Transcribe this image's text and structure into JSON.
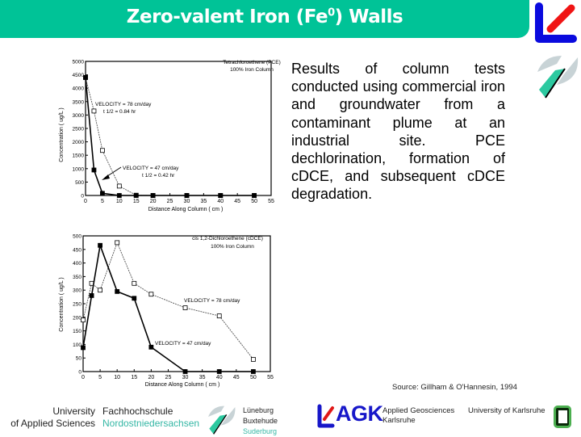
{
  "header": {
    "title_prefix": "Zero-valent Iron (Fe",
    "title_sup": "0",
    "title_suffix": ") Walls",
    "bar_color": "#00c397"
  },
  "description": "Results of column tests conducted using commercial iron and groundwater from a contaminant plume at an industrial site. PCE dechlorination, formation of cDCE, and subsequent cDCE degradation.",
  "source": "Source: Gillham & O'Hannesin, 1994",
  "footer": {
    "university_line1": "University",
    "university_line2": "of Applied Sciences",
    "fh_line1": "Fachhochschule",
    "fh_line2": "Nordostniedersachsen",
    "city1": "Lüneburg",
    "city2": "Buxtehude",
    "city3": "Suderburg",
    "agk_text": "AGK",
    "agk_label_line1": "Applied Geosciences",
    "agk_label_line2": "Karlsruhe",
    "karlsruhe_label": "University of Karlsruhe"
  },
  "icons": {
    "top_right_logo": "lk-logo-icon",
    "side_logo": "fh-nordostniedersachsen-logo-icon",
    "karlsruhe_logo": "uni-karlsruhe-logo-icon"
  },
  "chart_data": [
    {
      "type": "line",
      "title": "Tetrachloroethene (PCE)",
      "subtitle": "100% Iron Column",
      "xlabel": "Distance Along Column ( cm )",
      "ylabel": "Concentration ( ug/L )",
      "xlim": [
        0,
        55
      ],
      "ylim": [
        0,
        5000
      ],
      "xticks": [
        0,
        5,
        10,
        15,
        20,
        25,
        30,
        35,
        40,
        45,
        50,
        55
      ],
      "yticks": [
        0,
        500,
        1000,
        1500,
        2000,
        2500,
        3000,
        3500,
        4000,
        4500,
        5000
      ],
      "grid": false,
      "series": [
        {
          "name": "VELOCITY = 78 cm/day",
          "annotation": "t 1/2 = 0.84 hr",
          "marker": "open-square",
          "x": [
            0,
            2.5,
            5,
            10,
            15,
            20,
            30,
            40,
            50
          ],
          "values": [
            4400,
            3150,
            1680,
            350,
            10,
            0,
            0,
            0,
            0
          ]
        },
        {
          "name": "VELOCITY = 47 cm/day",
          "annotation": "t 1/2 = 0.42 hr",
          "marker": "filled-square",
          "x": [
            0,
            2.5,
            5,
            10,
            15,
            20,
            30,
            40,
            50
          ],
          "values": [
            4400,
            950,
            80,
            0,
            0,
            0,
            0,
            0,
            0
          ]
        }
      ],
      "labels": {
        "v78": "VELOCITY  =  78 cm/day",
        "t78": "t 1/2  =  0.84 hr",
        "v47": "VELOCITY  =  47 cm/day",
        "t47": "t 1/2  =  0.42 hr"
      }
    },
    {
      "type": "line",
      "title": "cis 1,2-Dichloroethene (cDCE)",
      "subtitle": "100% Iron Column",
      "xlabel": "Distance Along Column ( cm )",
      "ylabel": "Concentration ( ug/L )",
      "xlim": [
        0,
        55
      ],
      "ylim": [
        0,
        500
      ],
      "xticks": [
        0,
        5,
        10,
        15,
        20,
        25,
        30,
        35,
        40,
        45,
        50,
        55
      ],
      "yticks": [
        0,
        50,
        100,
        150,
        200,
        250,
        300,
        350,
        400,
        450,
        500
      ],
      "grid": false,
      "series": [
        {
          "name": "VELOCITY = 78 cm/day",
          "marker": "open-square",
          "x": [
            0,
            2.5,
            5,
            10,
            15,
            20,
            30,
            40,
            50
          ],
          "values": [
            190,
            325,
            300,
            475,
            325,
            285,
            235,
            205,
            45
          ]
        },
        {
          "name": "VELOCITY = 47 cm/day",
          "marker": "filled-square",
          "x": [
            0,
            2.5,
            5,
            10,
            15,
            20,
            30,
            40,
            50
          ],
          "values": [
            88,
            280,
            465,
            295,
            270,
            90,
            0,
            0,
            0
          ]
        }
      ],
      "labels": {
        "v78": "VELOCITY  =  78 cm/day",
        "v47": "VELOCITY  =  47 cm/day"
      }
    }
  ]
}
